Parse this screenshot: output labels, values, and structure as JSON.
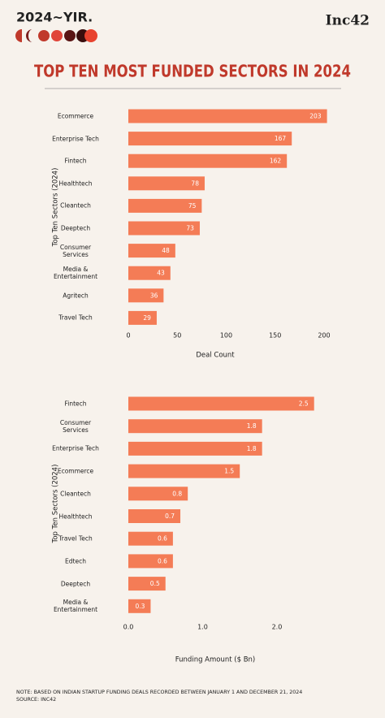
{
  "header": {
    "badge": "2024~YIR.",
    "brand": "Inc42"
  },
  "title": "TOP TEN MOST FUNDED SECTORS IN 2024",
  "chart_data": [
    {
      "type": "bar",
      "orientation": "horizontal",
      "categories": [
        "Ecommerce",
        "Enterprise Tech",
        "Fintech",
        "Healthtech",
        "Cleantech",
        "Deeptech",
        "Consumer\nServices",
        "Media &\nEntertainment",
        "Agritech",
        "Travel Tech"
      ],
      "values": [
        203,
        167,
        162,
        78,
        75,
        73,
        48,
        43,
        36,
        29
      ],
      "color": "#f47c56",
      "xlim": [
        0,
        205
      ],
      "xticks": [
        0,
        50,
        100,
        150,
        200
      ],
      "x_label": "Deal Count",
      "y_label": "Top Ten Sectors (2024)"
    },
    {
      "type": "bar",
      "orientation": "horizontal",
      "categories": [
        "Fintech",
        "Consumer\nServices",
        "Enterprise Tech",
        "Ecommerce",
        "Cleantech",
        "Healthtech",
        "Travel Tech",
        "Edtech",
        "Deeptech",
        "Media &\nEntertainment"
      ],
      "values": [
        2.5,
        1.8,
        1.8,
        1.5,
        0.8,
        0.7,
        0.6,
        0.6,
        0.5,
        0.3
      ],
      "color": "#f47c56",
      "xlim": [
        0,
        2.7
      ],
      "xticks": [
        {
          "value": 0,
          "label": "0.0"
        },
        {
          "value": 1,
          "label": "1.0"
        },
        {
          "value": 2,
          "label": "2.0"
        }
      ],
      "x_label": "Funding Amount ($ Bn)",
      "y_label": "Top Ten Sectors (2024)"
    }
  ],
  "footer": {
    "note": "NOTE: BASED ON INDIAN STARTUP FUNDING DEALS RECORDED BETWEEN JANUARY 1 AND DECEMBER 21, 2024",
    "source": "SOURCE: INC42"
  }
}
